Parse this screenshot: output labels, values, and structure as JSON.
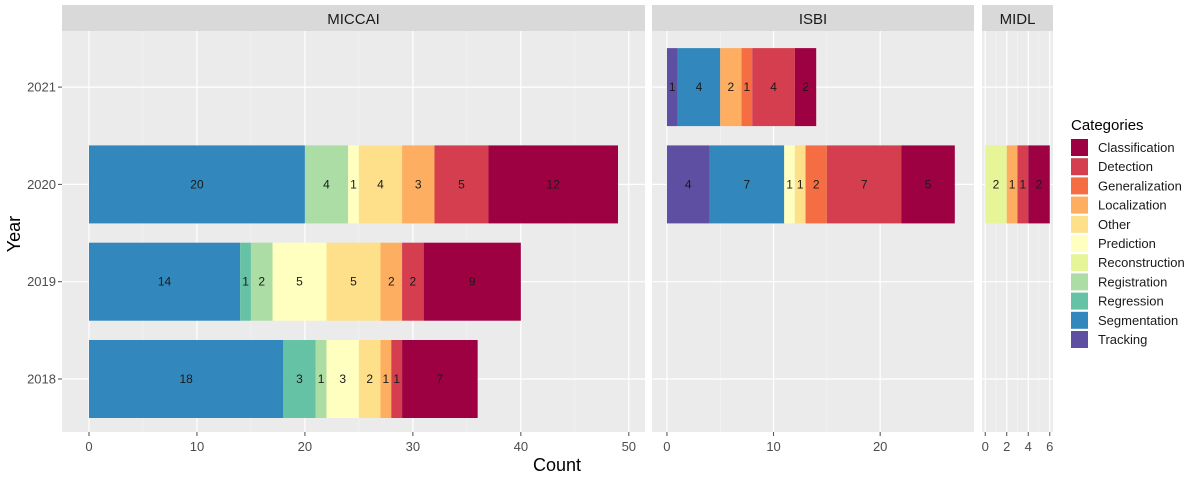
{
  "chart_data": {
    "type": "bar",
    "orientation": "horizontal",
    "stacked": true,
    "xlabel": "Count",
    "ylabel": "Year",
    "years": [
      "2018",
      "2019",
      "2020",
      "2021"
    ],
    "legend": {
      "title": "Categories",
      "position": "right",
      "entries": [
        "Classification",
        "Detection",
        "Generalization",
        "Localization",
        "Other",
        "Prediction",
        "Reconstruction",
        "Registration",
        "Regression",
        "Segmentation",
        "Tracking"
      ]
    },
    "colors": {
      "Classification": "#9e0142",
      "Detection": "#d53e4f",
      "Generalization": "#f46d43",
      "Localization": "#fdae61",
      "Other": "#fee08b",
      "Prediction": "#ffffbf",
      "Reconstruction": "#e6f598",
      "Registration": "#abdda4",
      "Regression": "#66c2a5",
      "Segmentation": "#3288bd",
      "Tracking": "#5e4fa2"
    },
    "stack_order": [
      "Tracking",
      "Segmentation",
      "Regression",
      "Registration",
      "Reconstruction",
      "Prediction",
      "Other",
      "Localization",
      "Generalization",
      "Detection",
      "Classification"
    ],
    "panels": [
      {
        "name": "MICCAI",
        "xlim": [
          -2.5,
          51.5
        ],
        "ticks": [
          0,
          10,
          20,
          30,
          40,
          50
        ],
        "bars": [
          {
            "year": "2021",
            "segments": []
          },
          {
            "year": "2020",
            "segments": [
              {
                "category": "Segmentation",
                "value": 20
              },
              {
                "category": "Registration",
                "value": 4
              },
              {
                "category": "Prediction",
                "value": 1
              },
              {
                "category": "Other",
                "value": 4
              },
              {
                "category": "Localization",
                "value": 3
              },
              {
                "category": "Detection",
                "value": 5
              },
              {
                "category": "Classification",
                "value": 12
              }
            ]
          },
          {
            "year": "2019",
            "segments": [
              {
                "category": "Segmentation",
                "value": 14
              },
              {
                "category": "Regression",
                "value": 1
              },
              {
                "category": "Registration",
                "value": 2
              },
              {
                "category": "Prediction",
                "value": 5
              },
              {
                "category": "Other",
                "value": 5
              },
              {
                "category": "Localization",
                "value": 2
              },
              {
                "category": "Detection",
                "value": 2
              },
              {
                "category": "Classification",
                "value": 9
              }
            ]
          },
          {
            "year": "2018",
            "segments": [
              {
                "category": "Segmentation",
                "value": 18
              },
              {
                "category": "Regression",
                "value": 3
              },
              {
                "category": "Registration",
                "value": 1
              },
              {
                "category": "Prediction",
                "value": 3
              },
              {
                "category": "Other",
                "value": 2
              },
              {
                "category": "Localization",
                "value": 1
              },
              {
                "category": "Detection",
                "value": 1
              },
              {
                "category": "Classification",
                "value": 7
              }
            ]
          }
        ]
      },
      {
        "name": "ISBI",
        "xlim": [
          -1.4,
          28.8
        ],
        "ticks": [
          0,
          10,
          20
        ],
        "bars": [
          {
            "year": "2021",
            "segments": [
              {
                "category": "Tracking",
                "value": 1
              },
              {
                "category": "Segmentation",
                "value": 4
              },
              {
                "category": "Localization",
                "value": 2
              },
              {
                "category": "Generalization",
                "value": 1
              },
              {
                "category": "Detection",
                "value": 4
              },
              {
                "category": "Classification",
                "value": 2
              }
            ]
          },
          {
            "year": "2020",
            "segments": [
              {
                "category": "Tracking",
                "value": 4
              },
              {
                "category": "Segmentation",
                "value": 7
              },
              {
                "category": "Prediction",
                "value": 1
              },
              {
                "category": "Other",
                "value": 1
              },
              {
                "category": "Generalization",
                "value": 2
              },
              {
                "category": "Detection",
                "value": 7
              },
              {
                "category": "Classification",
                "value": 5
              }
            ]
          },
          {
            "year": "2019",
            "segments": []
          },
          {
            "year": "2018",
            "segments": []
          }
        ]
      },
      {
        "name": "MIDL",
        "xlim": [
          -0.3,
          6.3
        ],
        "ticks": [
          0,
          2,
          4,
          6
        ],
        "bars": [
          {
            "year": "2021",
            "segments": []
          },
          {
            "year": "2020",
            "segments": [
              {
                "category": "Reconstruction",
                "value": 2
              },
              {
                "category": "Localization",
                "value": 1
              },
              {
                "category": "Detection",
                "value": 1
              },
              {
                "category": "Classification",
                "value": 2
              }
            ]
          },
          {
            "year": "2019",
            "segments": []
          },
          {
            "year": "2018",
            "segments": []
          }
        ]
      }
    ]
  }
}
